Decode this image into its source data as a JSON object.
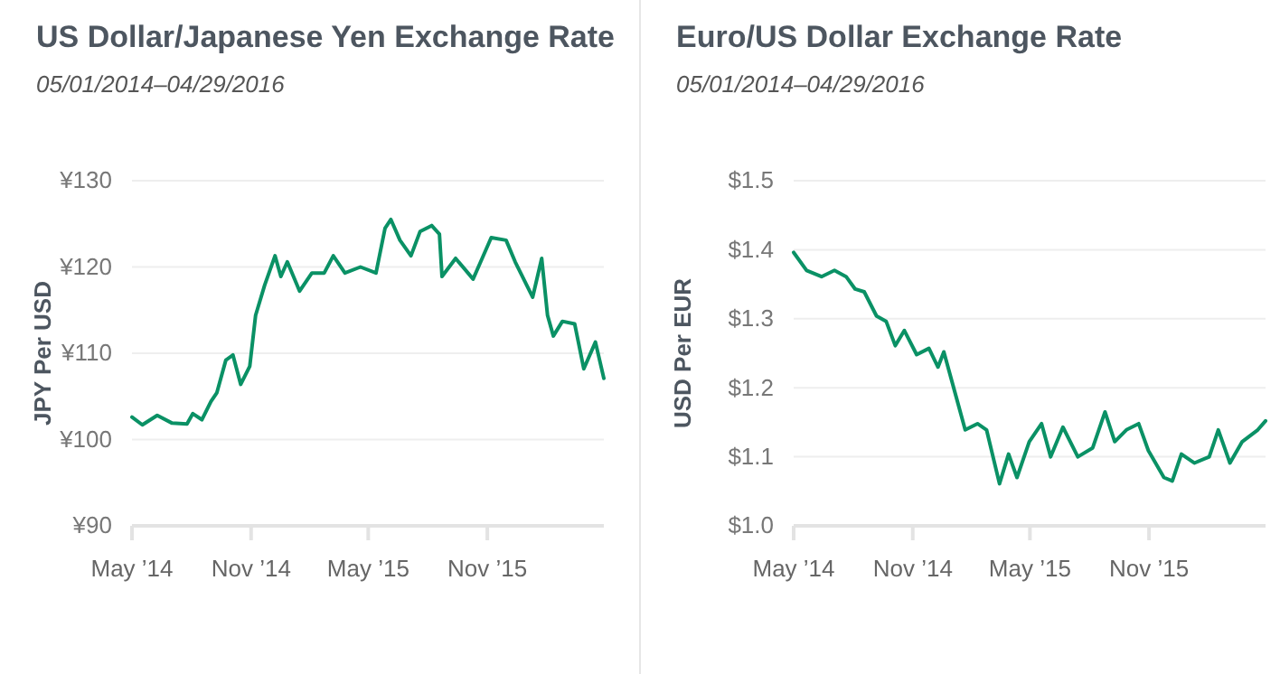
{
  "chart_data": [
    {
      "type": "line",
      "title": "US Dollar/Japanese Yen Exchange Rate",
      "subtitle": "05/01/2014–04/29/2016",
      "ylabel": "JPY Per USD",
      "xlim": [
        "2014-05-01",
        "2016-04-29"
      ],
      "xticks": [
        {
          "value": "2014-05-01",
          "label": "May ’14"
        },
        {
          "value": "2014-11-01",
          "label": "Nov ’14"
        },
        {
          "value": "2015-05-01",
          "label": "May ’15"
        },
        {
          "value": "2015-11-01",
          "label": "Nov ’15"
        }
      ],
      "ylim": [
        90,
        130
      ],
      "yticks": [
        {
          "value": 90,
          "label": "¥90"
        },
        {
          "value": 100,
          "label": "¥100"
        },
        {
          "value": 110,
          "label": "¥110"
        },
        {
          "value": 120,
          "label": "¥120"
        },
        {
          "value": 130,
          "label": "¥130"
        }
      ],
      "grid": "y",
      "x": [
        "2014-05-01",
        "2014-05-17",
        "2014-06-09",
        "2014-07-02",
        "2014-07-25",
        "2014-08-03",
        "2014-08-17",
        "2014-08-31",
        "2014-09-09",
        "2014-09-23",
        "2014-10-04",
        "2014-10-16",
        "2014-10-30",
        "2014-11-08",
        "2014-11-22",
        "2014-12-08",
        "2014-12-17",
        "2014-12-27",
        "2015-01-15",
        "2015-02-03",
        "2015-02-22",
        "2015-03-08",
        "2015-03-26",
        "2015-04-19",
        "2015-05-13",
        "2015-05-27",
        "2015-06-05",
        "2015-06-19",
        "2015-07-06",
        "2015-07-20",
        "2015-08-07",
        "2015-08-19",
        "2015-08-23",
        "2015-09-13",
        "2015-10-10",
        "2015-10-24",
        "2015-11-07",
        "2015-11-30",
        "2015-12-14",
        "2016-01-10",
        "2016-01-24",
        "2016-02-02",
        "2016-02-11",
        "2016-02-25",
        "2016-03-15",
        "2016-03-29",
        "2016-04-16",
        "2016-04-29"
      ],
      "series": [
        {
          "color": "#0a9165",
          "values": [
            102.6,
            101.7,
            102.8,
            101.9,
            101.8,
            103.0,
            102.3,
            104.4,
            105.4,
            109.2,
            109.8,
            106.4,
            108.5,
            114.4,
            117.9,
            121.3,
            118.9,
            120.6,
            117.2,
            119.3,
            119.3,
            121.3,
            119.3,
            120.0,
            119.3,
            124.5,
            125.5,
            123.1,
            121.3,
            124.1,
            124.8,
            123.8,
            118.9,
            121.0,
            118.6,
            121.0,
            123.4,
            123.1,
            120.6,
            116.5,
            121.0,
            114.4,
            112.0,
            113.7,
            113.4,
            108.2,
            111.3,
            107.1
          ]
        }
      ]
    },
    {
      "type": "line",
      "title": "Euro/US Dollar Exchange Rate",
      "subtitle": "05/01/2014–04/29/2016",
      "ylabel": "USD Per EUR",
      "xlim": [
        "2014-05-01",
        "2016-04-29"
      ],
      "xticks": [
        {
          "value": "2014-05-01",
          "label": "May ’14"
        },
        {
          "value": "2014-11-01",
          "label": "Nov ’14"
        },
        {
          "value": "2015-05-01",
          "label": "May ’15"
        },
        {
          "value": "2015-11-01",
          "label": "Nov ’15"
        }
      ],
      "ylim": [
        1.0,
        1.5
      ],
      "yticks": [
        {
          "value": 1.0,
          "label": "$1.0"
        },
        {
          "value": 1.1,
          "label": "$1.1"
        },
        {
          "value": 1.2,
          "label": "$1.2"
        },
        {
          "value": 1.3,
          "label": "$1.3"
        },
        {
          "value": 1.4,
          "label": "$1.4"
        },
        {
          "value": 1.5,
          "label": "$1.5"
        }
      ],
      "grid": "y",
      "x": [
        "2014-05-01",
        "2014-05-21",
        "2014-06-13",
        "2014-07-03",
        "2014-07-21",
        "2014-08-04",
        "2014-08-18",
        "2014-09-06",
        "2014-09-21",
        "2014-10-05",
        "2014-10-19",
        "2014-11-07",
        "2014-11-26",
        "2014-12-10",
        "2014-12-19",
        "2015-01-07",
        "2015-01-21",
        "2015-02-09",
        "2015-02-23",
        "2015-03-15",
        "2015-03-29",
        "2015-04-11",
        "2015-04-30",
        "2015-05-19",
        "2015-06-02",
        "2015-06-21",
        "2015-07-14",
        "2015-08-06",
        "2015-08-25",
        "2015-09-09",
        "2015-09-27",
        "2015-10-16",
        "2015-10-31",
        "2015-11-24",
        "2015-12-07",
        "2015-12-21",
        "2016-01-10",
        "2016-02-02",
        "2016-02-16",
        "2016-03-05",
        "2016-03-24",
        "2016-04-17",
        "2016-04-29"
      ],
      "series": [
        {
          "color": "#0a9165",
          "values": [
            1.396,
            1.37,
            1.361,
            1.37,
            1.361,
            1.343,
            1.339,
            1.304,
            1.296,
            1.261,
            1.283,
            1.248,
            1.257,
            1.23,
            1.252,
            1.187,
            1.139,
            1.148,
            1.139,
            1.061,
            1.104,
            1.07,
            1.122,
            1.148,
            1.1,
            1.143,
            1.1,
            1.113,
            1.165,
            1.122,
            1.139,
            1.148,
            1.109,
            1.07,
            1.065,
            1.104,
            1.091,
            1.1,
            1.139,
            1.091,
            1.122,
            1.139,
            1.152
          ]
        }
      ]
    }
  ]
}
